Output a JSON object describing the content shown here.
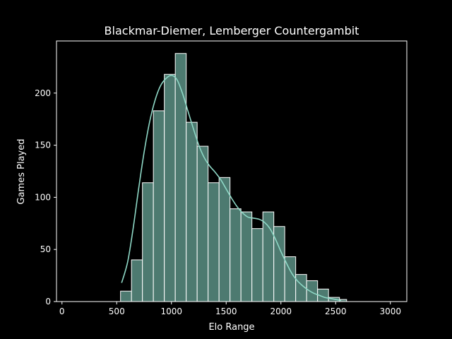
{
  "chart_data": {
    "type": "bar",
    "title": "Blackmar-Diemer, Lemberger Countergambit",
    "xlabel": "Elo Range",
    "ylabel": "Games Played",
    "xlim": [
      -50,
      3150
    ],
    "ylim": [
      0,
      250
    ],
    "xticks": [
      0,
      500,
      1000,
      1500,
      2000,
      2500,
      3000
    ],
    "yticks": [
      0,
      50,
      100,
      150,
      200
    ],
    "bin_edges": [
      535,
      635,
      735,
      835,
      935,
      1035,
      1135,
      1235,
      1335,
      1435,
      1535,
      1635,
      1735,
      1835,
      1935,
      2035,
      2135,
      2235,
      2335,
      2435,
      2535,
      2600
    ],
    "counts": [
      10,
      40,
      114,
      183,
      218,
      238,
      172,
      149,
      114,
      119,
      89,
      86,
      70,
      86,
      72,
      43,
      26,
      20,
      12,
      4,
      2
    ],
    "kde": {
      "x": [
        545,
        600,
        650,
        700,
        750,
        800,
        850,
        900,
        950,
        1000,
        1050,
        1100,
        1150,
        1200,
        1250,
        1300,
        1350,
        1400,
        1450,
        1500,
        1550,
        1600,
        1650,
        1700,
        1750,
        1800,
        1850,
        1900,
        1950,
        2000,
        2050,
        2100,
        2150,
        2200,
        2250,
        2300,
        2350,
        2400,
        2450,
        2500,
        2550
      ],
      "y": [
        18,
        38,
        70,
        108,
        143,
        172,
        193,
        207,
        214,
        217,
        213,
        200,
        183,
        166,
        150,
        138,
        130,
        124,
        117,
        108,
        99,
        91,
        85,
        81,
        80,
        79,
        76,
        70,
        60,
        48,
        37,
        27,
        20,
        15,
        11,
        8,
        6,
        4,
        3,
        2,
        1
      ]
    },
    "colors": {
      "bar_fill": "#4d7a70",
      "bar_edge": "#ffffff",
      "kde_line": "#8ed8c6",
      "axes": "#ffffff",
      "background": "#000000"
    },
    "grid": false,
    "legend": "none"
  }
}
